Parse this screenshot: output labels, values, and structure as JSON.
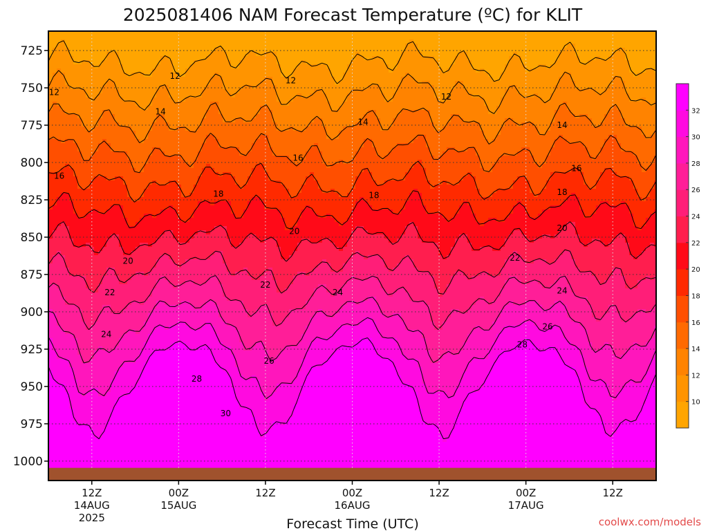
{
  "chart_data": {
    "type": "heatmap",
    "title": "2025081406 NAM Forecast Temperature (ºC) for KLIT",
    "xlabel": "Forecast Time (UTC)",
    "ylabel": "",
    "x_ticks": [
      {
        "label": "12Z",
        "sub": "14AUG",
        "year": "2025"
      },
      {
        "label": "00Z",
        "sub": "15AUG",
        "year": ""
      },
      {
        "label": "12Z",
        "sub": "",
        "year": ""
      },
      {
        "label": "00Z",
        "sub": "16AUG",
        "year": ""
      },
      {
        "label": "12Z",
        "sub": "",
        "year": ""
      },
      {
        "label": "00Z",
        "sub": "17AUG",
        "year": ""
      },
      {
        "label": "12Z",
        "sub": "",
        "year": ""
      }
    ],
    "x_tick_hours": [
      6,
      18,
      30,
      42,
      54,
      66,
      78
    ],
    "xlim_hours": [
      0,
      84
    ],
    "y_ticks": [
      "725",
      "750",
      "775",
      "800",
      "825",
      "850",
      "875",
      "900",
      "925",
      "950",
      "975",
      "1000"
    ],
    "y_tick_values": [
      725,
      750,
      775,
      800,
      825,
      850,
      875,
      900,
      925,
      950,
      975,
      1000
    ],
    "ylim_hpa": [
      712,
      1013
    ],
    "grid": true,
    "surface_color": "#a0522d",
    "colorbar": {
      "ticks": [
        "10",
        "12",
        "14",
        "16",
        "18",
        "20",
        "22",
        "24",
        "26",
        "28",
        "30",
        "32"
      ],
      "bins": [
        {
          "min": 8,
          "color": "#ffa500"
        },
        {
          "min": 10,
          "color": "#ff9400"
        },
        {
          "min": 12,
          "color": "#ff8300"
        },
        {
          "min": 14,
          "color": "#ff6a00"
        },
        {
          "min": 16,
          "color": "#ff4f00"
        },
        {
          "min": 18,
          "color": "#ff2a00"
        },
        {
          "min": 20,
          "color": "#ff0a18"
        },
        {
          "min": 22,
          "color": "#ff1e4e"
        },
        {
          "min": 24,
          "color": "#ff1e78"
        },
        {
          "min": 26,
          "color": "#ff1e98"
        },
        {
          "min": 28,
          "color": "#ff16bc"
        },
        {
          "min": 30,
          "color": "#ff0ae0"
        },
        {
          "min": 32,
          "color": "#ff00ff"
        }
      ]
    },
    "contour_levels": [
      10,
      12,
      14,
      16,
      18,
      20,
      22,
      24,
      26,
      28,
      30,
      32
    ],
    "contour_labels": [
      {
        "text": "12",
        "hour": 17.5,
        "hpa": 742
      },
      {
        "text": "12",
        "hour": 33.5,
        "hpa": 745
      },
      {
        "text": "12",
        "hour": 55.0,
        "hpa": 756
      },
      {
        "text": "12",
        "hour": 0.8,
        "hpa": 753
      },
      {
        "text": "14",
        "hour": 15.5,
        "hpa": 766
      },
      {
        "text": "14",
        "hour": 43.5,
        "hpa": 773
      },
      {
        "text": "14",
        "hour": 71.0,
        "hpa": 775
      },
      {
        "text": "16",
        "hour": 34.5,
        "hpa": 797
      },
      {
        "text": "16",
        "hour": 1.5,
        "hpa": 809
      },
      {
        "text": "16",
        "hour": 73.0,
        "hpa": 804
      },
      {
        "text": "18",
        "hour": 23.5,
        "hpa": 821
      },
      {
        "text": "18",
        "hour": 45.0,
        "hpa": 822
      },
      {
        "text": "18",
        "hour": 71.0,
        "hpa": 820
      },
      {
        "text": "20",
        "hour": 34.0,
        "hpa": 846
      },
      {
        "text": "20",
        "hour": 11.0,
        "hpa": 866
      },
      {
        "text": "20",
        "hour": 71.0,
        "hpa": 844
      },
      {
        "text": "22",
        "hour": 8.5,
        "hpa": 887
      },
      {
        "text": "22",
        "hour": 30.0,
        "hpa": 882
      },
      {
        "text": "22",
        "hour": 64.5,
        "hpa": 864
      },
      {
        "text": "24",
        "hour": 40.0,
        "hpa": 887
      },
      {
        "text": "24",
        "hour": 8.0,
        "hpa": 915
      },
      {
        "text": "24",
        "hour": 71.0,
        "hpa": 886
      },
      {
        "text": "26",
        "hour": 30.5,
        "hpa": 933
      },
      {
        "text": "26",
        "hour": 69.0,
        "hpa": 910
      },
      {
        "text": "28",
        "hour": 20.5,
        "hpa": 945
      },
      {
        "text": "28",
        "hour": 65.5,
        "hpa": 922
      },
      {
        "text": "30",
        "hour": 24.5,
        "hpa": 968
      }
    ]
  },
  "credit": "coolwx.com/models"
}
